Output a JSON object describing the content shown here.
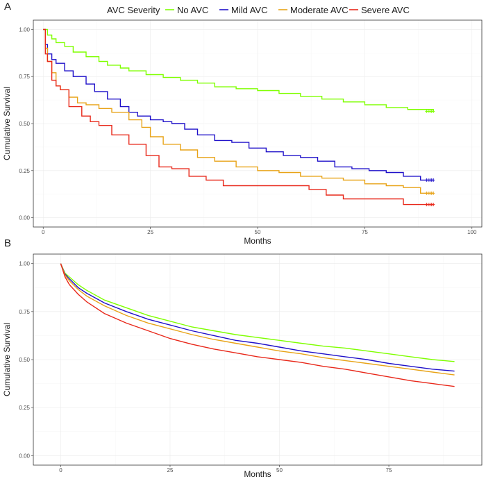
{
  "legend": {
    "title": "AVC Severity",
    "entries": [
      {
        "label": "No AVC",
        "color": "#7fff00"
      },
      {
        "label": "Mild AVC",
        "color": "#1f10c9"
      },
      {
        "label": "Moderate AVC",
        "color": "#e8a317"
      },
      {
        "label": "Severe AVC",
        "color": "#e8281a"
      }
    ]
  },
  "chart_data": [
    {
      "panel": "A",
      "type": "line",
      "step": true,
      "title": "",
      "xlabel": "Months",
      "ylabel": "Cumulative Survival",
      "xlim": [
        0,
        100
      ],
      "ylim": [
        0,
        1
      ],
      "xticks": [
        0,
        25,
        50,
        75,
        100
      ],
      "yticks": [
        0.0,
        0.25,
        0.5,
        0.75,
        1.0
      ],
      "xtick_labels": [
        "0",
        "25",
        "50",
        "75",
        "100"
      ],
      "ytick_labels": [
        "0.00",
        "0.25",
        "0.50",
        "0.75",
        "1.00"
      ],
      "censor_marks_end": true,
      "series": [
        {
          "name": "No AVC",
          "color": "#7fff00",
          "x": [
            0,
            1,
            2,
            3,
            5,
            7,
            10,
            13,
            15,
            18,
            20,
            24,
            28,
            32,
            36,
            40,
            45,
            50,
            55,
            60,
            65,
            70,
            75,
            80,
            85,
            91
          ],
          "y": [
            1.0,
            0.97,
            0.95,
            0.93,
            0.91,
            0.88,
            0.855,
            0.83,
            0.81,
            0.795,
            0.78,
            0.76,
            0.745,
            0.73,
            0.715,
            0.695,
            0.685,
            0.675,
            0.66,
            0.645,
            0.63,
            0.615,
            0.6,
            0.585,
            0.575,
            0.565
          ]
        },
        {
          "name": "Mild AVC",
          "color": "#1f10c9",
          "x": [
            0,
            0.5,
            1,
            2,
            3,
            5,
            7,
            10,
            12,
            15,
            18,
            20,
            22,
            25,
            28,
            30,
            33,
            36,
            40,
            44,
            48,
            52,
            56,
            60,
            64,
            68,
            72,
            76,
            80,
            84,
            88,
            91
          ],
          "y": [
            1.0,
            0.92,
            0.87,
            0.84,
            0.82,
            0.78,
            0.75,
            0.71,
            0.67,
            0.63,
            0.59,
            0.56,
            0.54,
            0.52,
            0.51,
            0.5,
            0.47,
            0.44,
            0.41,
            0.4,
            0.37,
            0.35,
            0.33,
            0.32,
            0.3,
            0.27,
            0.26,
            0.25,
            0.24,
            0.22,
            0.2,
            0.2
          ]
        },
        {
          "name": "Moderate AVC",
          "color": "#e8a317",
          "x": [
            0,
            0.5,
            1,
            2,
            3,
            4,
            6,
            8,
            10,
            13,
            16,
            20,
            23,
            25,
            28,
            32,
            36,
            40,
            45,
            50,
            55,
            60,
            65,
            70,
            75,
            80,
            84,
            88,
            91
          ],
          "y": [
            1.0,
            0.9,
            0.83,
            0.77,
            0.7,
            0.68,
            0.64,
            0.61,
            0.6,
            0.58,
            0.56,
            0.52,
            0.48,
            0.43,
            0.39,
            0.36,
            0.32,
            0.3,
            0.27,
            0.25,
            0.24,
            0.22,
            0.21,
            0.2,
            0.18,
            0.17,
            0.16,
            0.13,
            0.13
          ]
        },
        {
          "name": "Severe AVC",
          "color": "#e8281a",
          "x": [
            0,
            0.5,
            1,
            2,
            3,
            4,
            6,
            9,
            11,
            13,
            16,
            20,
            24,
            27,
            30,
            34,
            38,
            42,
            46,
            50,
            56,
            62,
            66,
            70,
            75,
            80,
            84,
            88,
            91
          ],
          "y": [
            1.0,
            0.87,
            0.83,
            0.73,
            0.7,
            0.68,
            0.59,
            0.54,
            0.51,
            0.49,
            0.44,
            0.39,
            0.33,
            0.27,
            0.26,
            0.22,
            0.2,
            0.17,
            0.17,
            0.17,
            0.17,
            0.15,
            0.12,
            0.1,
            0.1,
            0.1,
            0.07,
            0.07,
            0.07
          ]
        }
      ]
    },
    {
      "panel": "B",
      "type": "line",
      "step": false,
      "title": "",
      "xlabel": "Months",
      "ylabel": "Cumulative Survival",
      "xlim": [
        -4,
        94
      ],
      "ylim": [
        0,
        1
      ],
      "xticks": [
        0,
        25,
        50,
        75
      ],
      "yticks": [
        0.0,
        0.25,
        0.5,
        0.75,
        1.0
      ],
      "xtick_labels": [
        "0",
        "25",
        "50",
        "75"
      ],
      "ytick_labels": [
        "0.00",
        "0.25",
        "0.50",
        "0.75",
        "1.00"
      ],
      "censor_marks_end": false,
      "series": [
        {
          "name": "No AVC",
          "color": "#7fff00",
          "x": [
            0,
            1,
            2,
            4,
            6,
            10,
            15,
            20,
            25,
            30,
            35,
            40,
            45,
            50,
            55,
            60,
            65,
            70,
            75,
            80,
            85,
            90
          ],
          "y": [
            1.0,
            0.95,
            0.93,
            0.89,
            0.86,
            0.81,
            0.77,
            0.73,
            0.7,
            0.67,
            0.65,
            0.63,
            0.615,
            0.6,
            0.585,
            0.57,
            0.56,
            0.545,
            0.53,
            0.515,
            0.5,
            0.49
          ]
        },
        {
          "name": "Mild AVC",
          "color": "#1f10c9",
          "x": [
            0,
            1,
            2,
            4,
            6,
            10,
            15,
            20,
            25,
            30,
            35,
            40,
            45,
            50,
            55,
            60,
            65,
            70,
            75,
            80,
            85,
            90
          ],
          "y": [
            1.0,
            0.945,
            0.92,
            0.875,
            0.845,
            0.795,
            0.75,
            0.71,
            0.68,
            0.65,
            0.625,
            0.6,
            0.585,
            0.565,
            0.545,
            0.53,
            0.515,
            0.5,
            0.48,
            0.465,
            0.45,
            0.44
          ]
        },
        {
          "name": "Moderate AVC",
          "color": "#e8a317",
          "x": [
            0,
            1,
            2,
            4,
            6,
            10,
            15,
            20,
            25,
            30,
            35,
            40,
            45,
            50,
            55,
            60,
            65,
            70,
            75,
            80,
            85,
            90
          ],
          "y": [
            1.0,
            0.94,
            0.91,
            0.865,
            0.83,
            0.78,
            0.73,
            0.69,
            0.66,
            0.63,
            0.605,
            0.585,
            0.565,
            0.545,
            0.53,
            0.51,
            0.495,
            0.48,
            0.465,
            0.45,
            0.435,
            0.42
          ]
        },
        {
          "name": "Severe AVC",
          "color": "#e8281a",
          "x": [
            0,
            1,
            2,
            4,
            6,
            10,
            15,
            20,
            25,
            30,
            35,
            40,
            45,
            50,
            55,
            60,
            65,
            70,
            75,
            80,
            85,
            90
          ],
          "y": [
            1.0,
            0.93,
            0.89,
            0.84,
            0.8,
            0.74,
            0.69,
            0.65,
            0.61,
            0.58,
            0.555,
            0.535,
            0.515,
            0.5,
            0.485,
            0.465,
            0.45,
            0.43,
            0.41,
            0.39,
            0.375,
            0.36
          ]
        }
      ]
    }
  ]
}
